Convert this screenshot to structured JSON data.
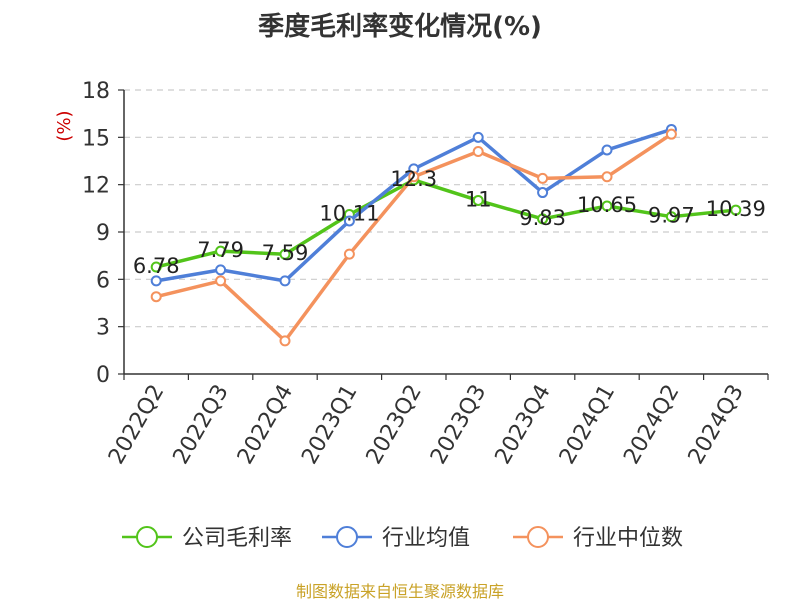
{
  "chart_data": {
    "type": "line",
    "title": "季度毛利率变化情况(%)",
    "ylabel": "(%)",
    "categories": [
      "2022Q2",
      "2022Q3",
      "2022Q4",
      "2023Q1",
      "2023Q2",
      "2023Q3",
      "2023Q4",
      "2024Q1",
      "2024Q2",
      "2024Q3"
    ],
    "ylim": [
      0,
      18
    ],
    "yticks": [
      0,
      3,
      6,
      9,
      12,
      15,
      18
    ],
    "grid": true,
    "legend_position": "bottom",
    "series": [
      {
        "name": "公司毛利率",
        "color": "#52c41a",
        "values": [
          6.78,
          7.79,
          7.59,
          10.11,
          12.3,
          11,
          9.83,
          10.65,
          9.97,
          10.39
        ],
        "labels": [
          "6.78",
          "7.79",
          "7.59",
          "10.11",
          "12.3",
          "11",
          "9.83",
          "10.65",
          "9.97",
          "10.39"
        ]
      },
      {
        "name": "行业均值",
        "color": "#4f7fd8",
        "values": [
          5.9,
          6.6,
          5.9,
          9.7,
          13.0,
          15.0,
          11.5,
          14.2,
          15.5,
          null
        ]
      },
      {
        "name": "行业中位数",
        "color": "#f4925d",
        "values": [
          4.9,
          5.9,
          2.1,
          7.6,
          12.5,
          14.1,
          12.4,
          12.5,
          15.2,
          null
        ]
      }
    ]
  },
  "footer": "制图数据来自恒生聚源数据库"
}
